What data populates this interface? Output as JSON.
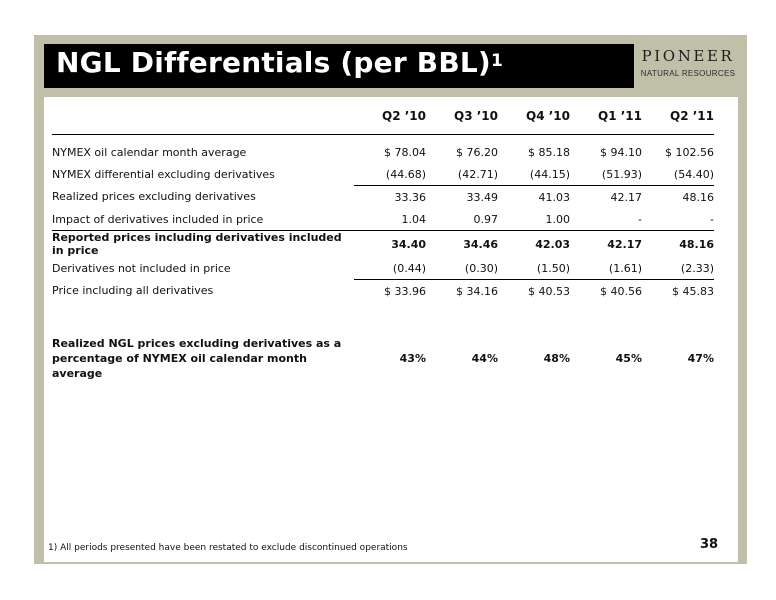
{
  "header": {
    "title": "NGL Differentials (per BBL)",
    "title_sup": "1"
  },
  "logo": {
    "name": "PIONEER",
    "subtitle": "NATURAL RESOURCES"
  },
  "table": {
    "columns": [
      "Q2 ’10",
      "Q3 ’10",
      "Q4 ’10",
      "Q1 ’11",
      "Q2 ’11"
    ],
    "rows": [
      {
        "label": "NYMEX oil calendar month average",
        "values": [
          "$ 78.04",
          "$ 76.20",
          "$ 85.18",
          "$ 94.10",
          "$ 102.56"
        ]
      },
      {
        "label": "NYMEX differential excluding derivatives",
        "values": [
          "(44.68)",
          "(42.71)",
          "(44.15)",
          "(51.93)",
          "(54.40)"
        ]
      },
      {
        "label": "Realized prices excluding derivatives",
        "values": [
          "33.36",
          "33.49",
          "41.03",
          "42.17",
          "48.16"
        ]
      },
      {
        "label": "Impact of derivatives included in price",
        "values": [
          "1.04",
          "0.97",
          "1.00",
          "-",
          "-"
        ]
      },
      {
        "label": "Reported prices including derivatives included in price",
        "values": [
          "34.40",
          "34.46",
          "42.03",
          "42.17",
          "48.16"
        ]
      },
      {
        "label": "Derivatives not included in price",
        "values": [
          "(0.44)",
          "(0.30)",
          "(1.50)",
          "(1.61)",
          "(2.33)"
        ]
      },
      {
        "label": "Price including all derivatives",
        "values": [
          "$ 33.96",
          "$ 34.16",
          "$ 40.53",
          "$ 40.56",
          "$ 45.83"
        ]
      }
    ],
    "pct_row": {
      "label_line1": "Realized NGL prices excluding derivatives as a",
      "label_line2": "percentage of NYMEX oil calendar month average",
      "values": [
        "43%",
        "44%",
        "48%",
        "45%",
        "47%"
      ]
    }
  },
  "footnote": "1) All periods presented have been restated to exclude discontinued operations",
  "page_number": "38"
}
